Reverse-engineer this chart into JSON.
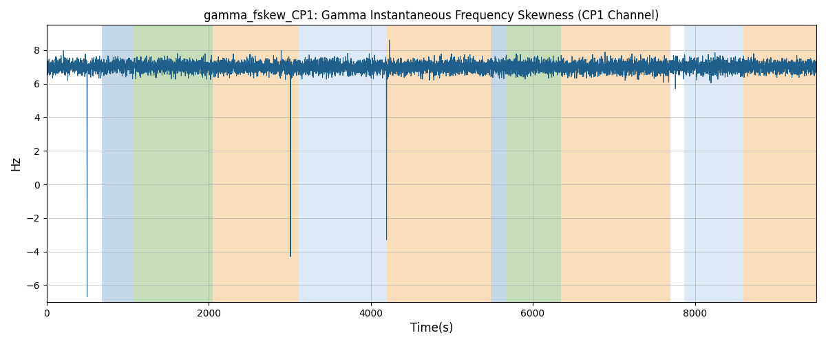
{
  "title": "gamma_fskew_CP1: Gamma Instantaneous Frequency Skewness (CP1 Channel)",
  "xlabel": "Time(s)",
  "ylabel": "Hz",
  "xlim": [
    0,
    9500
  ],
  "ylim": [
    -7,
    9.5
  ],
  "line_color": "#1f5f8b",
  "line_width": 0.8,
  "background_regions": [
    {
      "xmin": 0,
      "xmax": 680,
      "color": "#ffffff"
    },
    {
      "xmin": 680,
      "xmax": 1070,
      "color": "#c5d8e8"
    },
    {
      "xmin": 1070,
      "xmax": 2050,
      "color": "#c5ddb8"
    },
    {
      "xmin": 2050,
      "xmax": 3100,
      "color": "#faddba"
    },
    {
      "xmin": 3100,
      "xmax": 4200,
      "color": "#ddeaf5"
    },
    {
      "xmin": 4200,
      "xmax": 5480,
      "color": "#faddba"
    },
    {
      "xmin": 5480,
      "xmax": 5680,
      "color": "#c5d8e8"
    },
    {
      "xmin": 5680,
      "xmax": 6350,
      "color": "#c5ddb8"
    },
    {
      "xmin": 6350,
      "xmax": 7700,
      "color": "#faddba"
    },
    {
      "xmin": 7700,
      "xmax": 7870,
      "color": "#ffffff"
    },
    {
      "xmin": 7870,
      "xmax": 8600,
      "color": "#ddeaf5"
    },
    {
      "xmin": 8600,
      "xmax": 9500,
      "color": "#faddba"
    }
  ],
  "seed": 42,
  "n_points": 9500,
  "base_value": 7.0,
  "noise_std": 0.25,
  "yticks": [
    -6,
    -4,
    -2,
    0,
    2,
    4,
    6,
    8
  ],
  "xticks": [
    0,
    2000,
    4000,
    6000,
    8000
  ],
  "figsize": [
    12.0,
    5.0
  ],
  "dpi": 100
}
